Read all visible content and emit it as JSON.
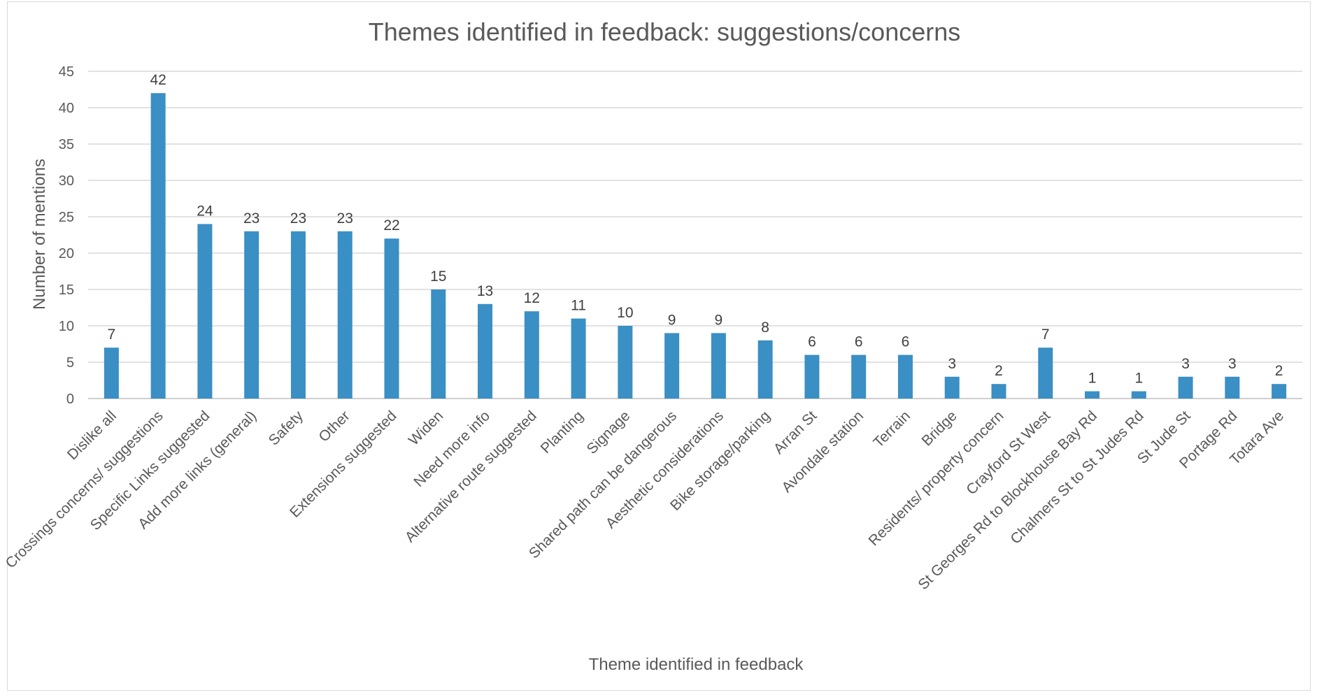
{
  "chart_data": {
    "type": "bar",
    "title": "Themes identified in feedback: suggestions/concerns",
    "xlabel": "Theme identified in feedback",
    "ylabel": "Number of mentions",
    "ylim": [
      0,
      45
    ],
    "yticks": [
      0,
      5,
      10,
      15,
      20,
      25,
      30,
      35,
      40,
      45
    ],
    "grid": true,
    "legend": "none",
    "bar_color": "#3a8fc4",
    "categories": [
      "Dislike all",
      "Crossings concerns/ suggestions",
      "Specific Links suggested",
      "Add more links (general)",
      "Safety",
      "Other",
      "Extensions suggested",
      "Widen",
      "Need more info",
      "Alternative route suggested",
      "Planting",
      "Signage",
      "Shared path can be dangerous",
      "Aesthetic considerations",
      "Bike storage/parking",
      "Arran St",
      "Avondale station",
      "Terrain",
      "Bridge",
      "Residents/ property concern",
      "Crayford St West",
      "St Georges Rd to Blockhouse Bay Rd",
      "Chalmers St to St Judes Rd",
      "St Jude St",
      "Portage Rd",
      "Totara Ave"
    ],
    "values": [
      7,
      42,
      24,
      23,
      23,
      23,
      22,
      15,
      13,
      12,
      11,
      10,
      9,
      9,
      8,
      6,
      6,
      6,
      3,
      2,
      7,
      1,
      1,
      3,
      3,
      2
    ]
  }
}
